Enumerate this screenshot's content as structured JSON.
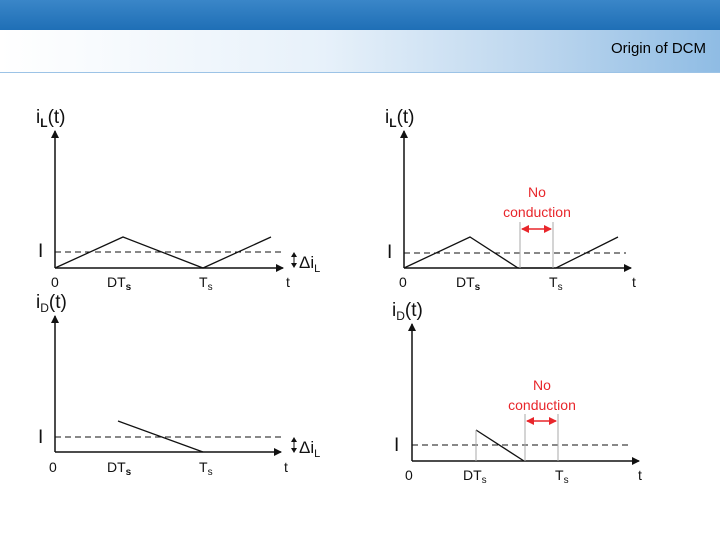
{
  "header": {
    "title": "Origin of DCM"
  },
  "labels": {
    "i_base": "i",
    "sub_L": "L",
    "sub_D": "D",
    "t_paren": "(t)",
    "I": "I",
    "zero": "0",
    "DT": "DT",
    "T": "T",
    "sub_s": "s",
    "t": "t",
    "delta": "Δi",
    "no": "No",
    "conduction": "conduction"
  },
  "colors": {
    "topbar": "#1f6fb6",
    "annotation": "#e8262b"
  }
}
